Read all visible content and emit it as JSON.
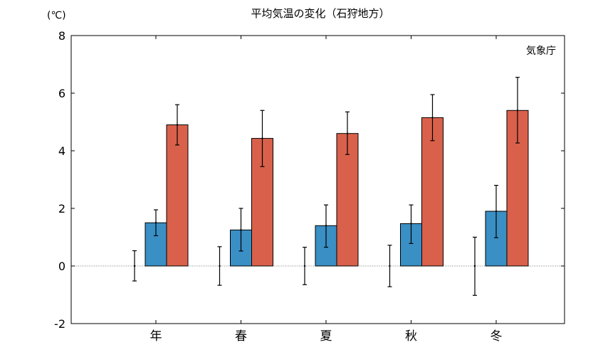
{
  "chart_data": {
    "type": "bar",
    "title": "平均気温の変化（石狩地方）",
    "unit_label": "(℃)",
    "source_label": "気象庁",
    "categories": [
      "年",
      "春",
      "夏",
      "秋",
      "冬"
    ],
    "ylim": [
      -2,
      8
    ],
    "yticks": [
      -2,
      0,
      2,
      4,
      6,
      8
    ],
    "ytick_labels": [
      "-2",
      "0",
      "2",
      "4",
      "6",
      "8"
    ],
    "grid": false,
    "zero_line": "dotted",
    "series": [
      {
        "values": [
          0.0,
          0.0,
          0.0,
          0.0,
          0.0
        ],
        "error_low": [
          -0.52,
          -0.67,
          -0.65,
          -0.72,
          -1.02
        ],
        "error_high": [
          0.53,
          0.67,
          0.65,
          0.72,
          1.0
        ],
        "color": "none"
      },
      {
        "values": [
          1.5,
          1.25,
          1.4,
          1.47,
          1.9
        ],
        "error_low": [
          1.05,
          0.52,
          0.65,
          0.78,
          0.98
        ],
        "error_high": [
          1.95,
          2.0,
          2.12,
          2.12,
          2.8
        ],
        "color": "#3a8fc4"
      },
      {
        "values": [
          4.9,
          4.43,
          4.6,
          5.15,
          5.4
        ],
        "error_low": [
          4.2,
          3.45,
          3.87,
          4.35,
          4.27
        ],
        "error_high": [
          5.6,
          5.4,
          5.35,
          5.95,
          6.55
        ],
        "color": "#d9614b"
      }
    ]
  }
}
